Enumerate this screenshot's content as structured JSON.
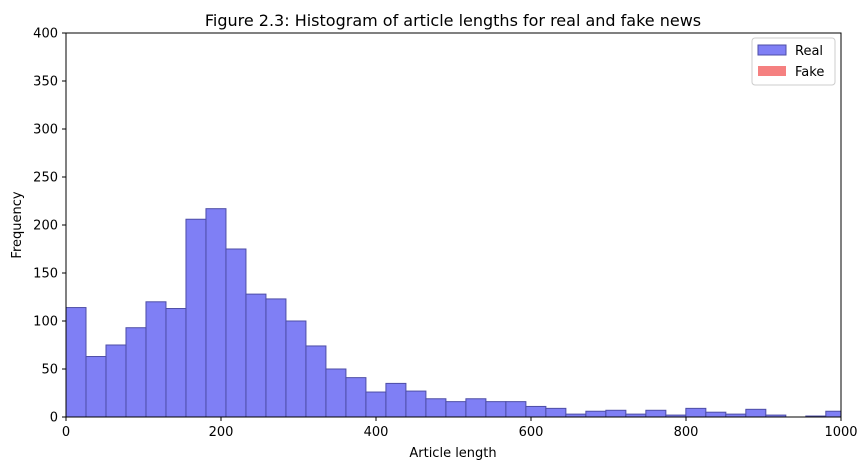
{
  "chart_data": {
    "type": "bar",
    "title": "Figure 2.3: Histogram of article lengths for real and fake news",
    "xlabel": "Article length",
    "ylabel": "Frequency",
    "xlim": [
      0,
      1000
    ],
    "ylim": [
      0,
      400
    ],
    "xticks": [
      0,
      200,
      400,
      600,
      800,
      1000
    ],
    "yticks": [
      0,
      50,
      100,
      150,
      200,
      250,
      300,
      350,
      400
    ],
    "grid": false,
    "legend_position": "top-right",
    "bin_width": 25.8,
    "series": [
      {
        "name": "Real",
        "color": "#7f7ff5",
        "edge_color": "#4d4da6",
        "bin_starts": [
          0,
          25.8,
          51.6,
          77.4,
          103.2,
          129,
          154.8,
          180.6,
          206.4,
          232.2,
          258,
          283.8,
          309.6,
          335.4,
          361.2,
          387,
          412.8,
          438.6,
          464.4,
          490.2,
          516,
          541.8,
          567.6,
          593.4,
          619.2,
          645,
          670.8,
          696.6,
          722.4,
          748.2,
          774,
          799.8,
          825.6,
          851.4,
          877.2,
          903,
          928.8,
          954.6,
          980.4
        ],
        "values": [
          114,
          63,
          75,
          93,
          120,
          113,
          206,
          217,
          175,
          128,
          123,
          100,
          74,
          50,
          41,
          26,
          35,
          27,
          19,
          16,
          19,
          16,
          16,
          11,
          9,
          3,
          6,
          7,
          3,
          7,
          2,
          9,
          5,
          3,
          8,
          2,
          0,
          1,
          6
        ]
      },
      {
        "name": "Fake",
        "color": "#f58080",
        "values": []
      }
    ]
  }
}
